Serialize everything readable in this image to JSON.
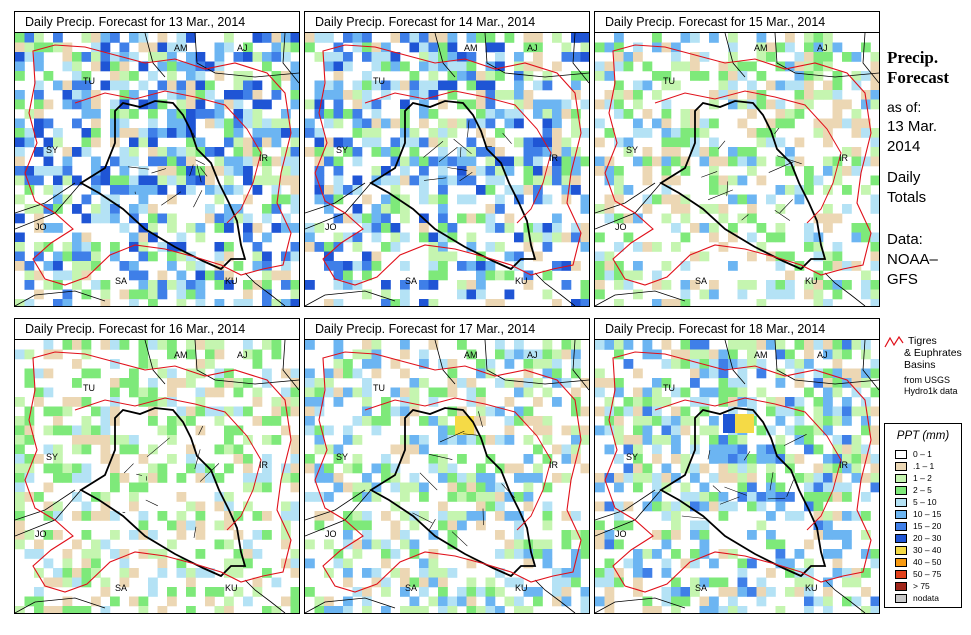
{
  "panels": [
    {
      "title": "Daily Precip. Forecast for  13 Mar., 2014",
      "seed": 13,
      "intensity": 1.0,
      "hot": []
    },
    {
      "title": "Daily Precip. Forecast for  14 Mar., 2014",
      "seed": 14,
      "intensity": 0.9,
      "hot": []
    },
    {
      "title": "Daily Precip. Forecast for  15 Mar., 2014",
      "seed": 15,
      "intensity": 0.5,
      "hot": []
    },
    {
      "title": "Daily Precip. Forecast for  16 Mar., 2014",
      "seed": 16,
      "intensity": 0.35,
      "hot": []
    },
    {
      "title": "Daily Precip. Forecast for  17 Mar., 2014",
      "seed": 17,
      "intensity": 0.6,
      "hot": [
        "30-40"
      ]
    },
    {
      "title": "Daily Precip. Forecast for  18 Mar., 2014",
      "seed": 18,
      "intensity": 0.7,
      "hot": [
        "20-30",
        "30-40"
      ]
    }
  ],
  "country_labels": [
    "AM",
    "AJ",
    "TU",
    "SY",
    "IR",
    "JO",
    "SA",
    "KU"
  ],
  "sidebar": {
    "title_line1": "Precip.",
    "title_line2": "Forecast",
    "asof_label": "as of:",
    "date_line1": "13 Mar.",
    "date_line2": "2014",
    "totals_line1": "Daily",
    "totals_line2": "Totals",
    "data_line1": "Data:",
    "data_line2": "NOAA–",
    "data_line3": "GFS"
  },
  "basin_legend": {
    "line1": "Tigres",
    "line2": "& Euphrates",
    "line3": "Basins",
    "src1": "from USGS",
    "src2": "Hydro1k data",
    "color": "#e0101a"
  },
  "legend": {
    "title": "PPT (mm)",
    "items": [
      {
        "label": "0 – 1",
        "color": "#ffffff"
      },
      {
        "label": ".1 – 1",
        "color": "#ecd7b4"
      },
      {
        "label": "1 – 2",
        "color": "#c5f5b0"
      },
      {
        "label": "2 – 5",
        "color": "#7ee97a"
      },
      {
        "label": "5 – 10",
        "color": "#b4e2f5"
      },
      {
        "label": "10 – 15",
        "color": "#6cb5f2"
      },
      {
        "label": "15 – 20",
        "color": "#3f7fe8"
      },
      {
        "label": "20 – 30",
        "color": "#1f55d5"
      },
      {
        "label": "30 – 40",
        "color": "#f5da46"
      },
      {
        "label": "40 – 50",
        "color": "#f79a12"
      },
      {
        "label": "50 – 75",
        "color": "#e2401a"
      },
      {
        "label": "> 75",
        "color": "#a0261a"
      },
      {
        "label": "nodata",
        "color": "#c8c8c8"
      }
    ]
  }
}
